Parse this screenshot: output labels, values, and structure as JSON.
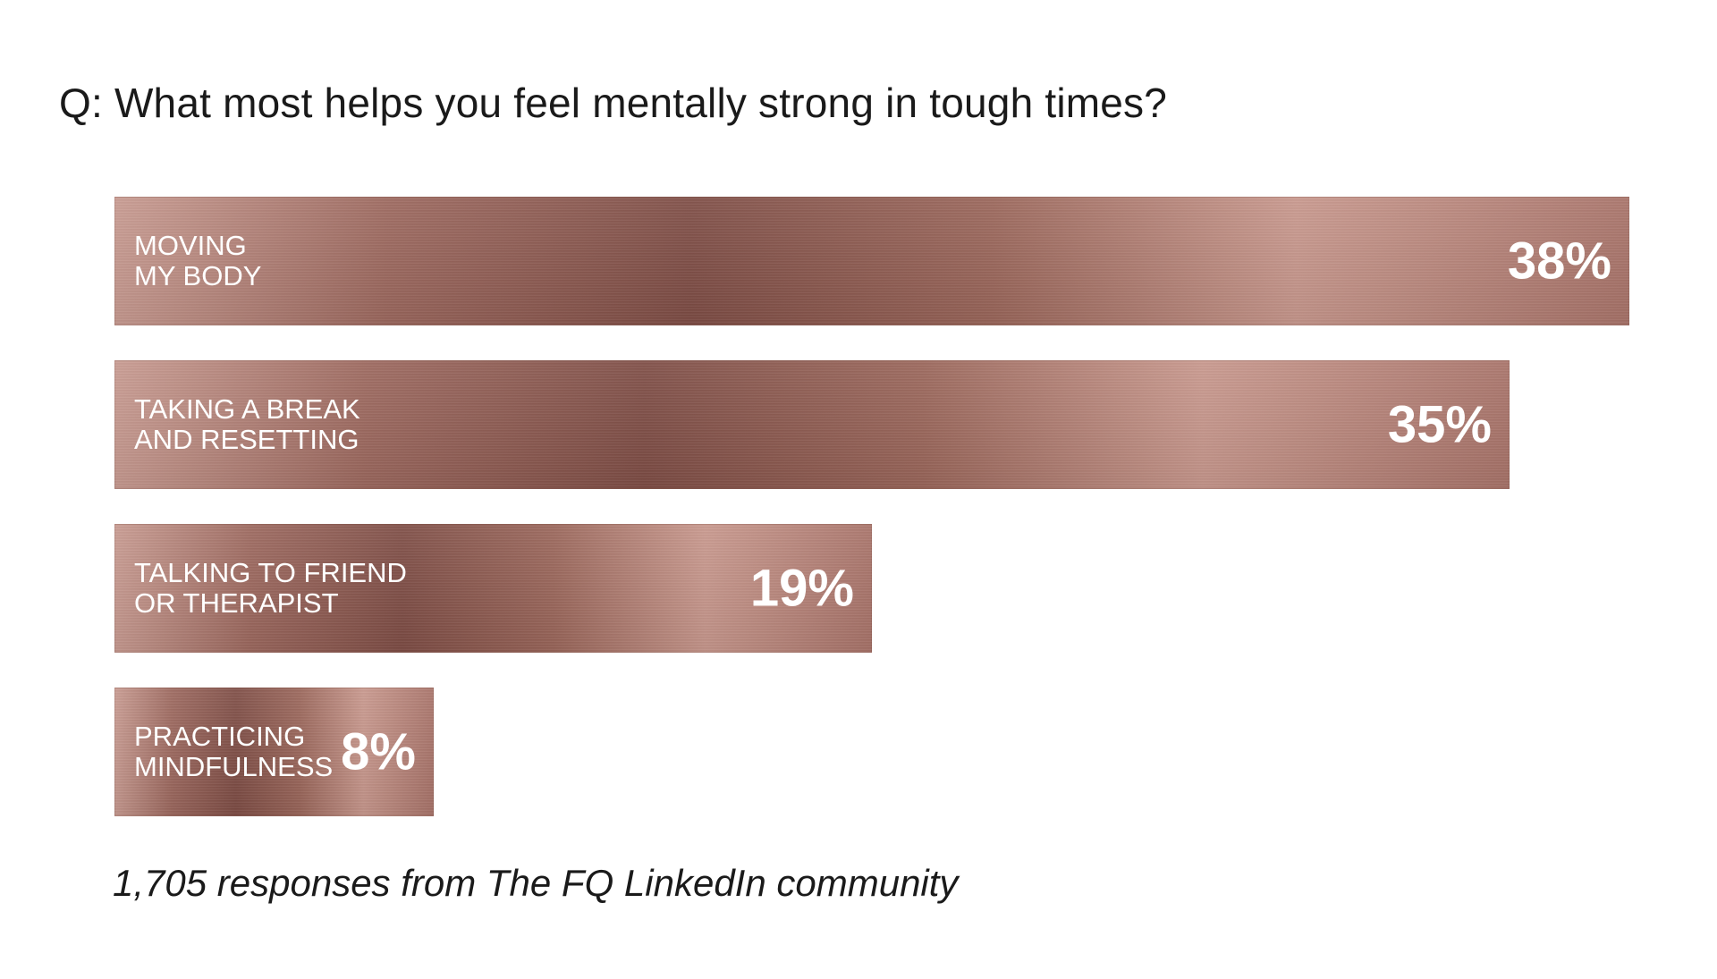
{
  "chart_data": {
    "type": "bar",
    "orientation": "horizontal",
    "title": "Q: What most helps you feel mentally strong in tough times?",
    "categories": [
      "MOVING\nMY BODY",
      "TAKING A BREAK\nAND RESETTING",
      "TALKING TO FRIEND\nOR THERAPIST",
      "PRACTICING\nMINDFULNESS"
    ],
    "values": [
      38,
      35,
      19,
      8
    ],
    "value_labels": [
      "38%",
      "35%",
      "19%",
      "8%"
    ],
    "xlim": [
      0,
      38
    ],
    "grid": false,
    "legend": "none",
    "footnote": "1,705 responses from The FQ LinkedIn community"
  },
  "colors": {
    "bar_fill": "#9a6559",
    "bar_text": "#ffffff",
    "title_text": "#1a1a1a"
  }
}
